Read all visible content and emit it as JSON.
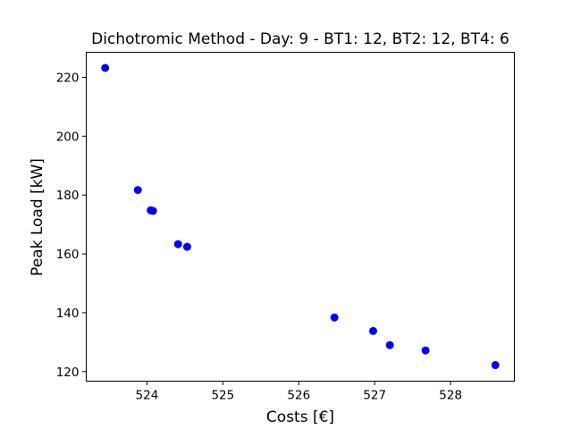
{
  "chart_data": {
    "type": "scatter",
    "title": "Dichotromic Method - Day: 9 - BT1: 12, BT2: 12, BT4: 6",
    "xlabel": "Costs [€]",
    "ylabel": "Peak Load [kW]",
    "xlim": [
      523.2,
      528.84
    ],
    "ylim": [
      116.75,
      228.5
    ],
    "xticks": [
      524,
      525,
      526,
      527,
      528
    ],
    "yticks": [
      120,
      140,
      160,
      180,
      200,
      220
    ],
    "grid": false,
    "marker_color": "#0000ff",
    "points": [
      {
        "x": 523.45,
        "y": 223.2
      },
      {
        "x": 523.88,
        "y": 181.7
      },
      {
        "x": 524.05,
        "y": 174.8
      },
      {
        "x": 524.08,
        "y": 174.6
      },
      {
        "x": 524.41,
        "y": 163.3
      },
      {
        "x": 524.53,
        "y": 162.4
      },
      {
        "x": 526.47,
        "y": 138.4
      },
      {
        "x": 526.98,
        "y": 133.8
      },
      {
        "x": 527.2,
        "y": 129.0
      },
      {
        "x": 527.67,
        "y": 127.2
      },
      {
        "x": 528.59,
        "y": 122.2
      }
    ]
  }
}
